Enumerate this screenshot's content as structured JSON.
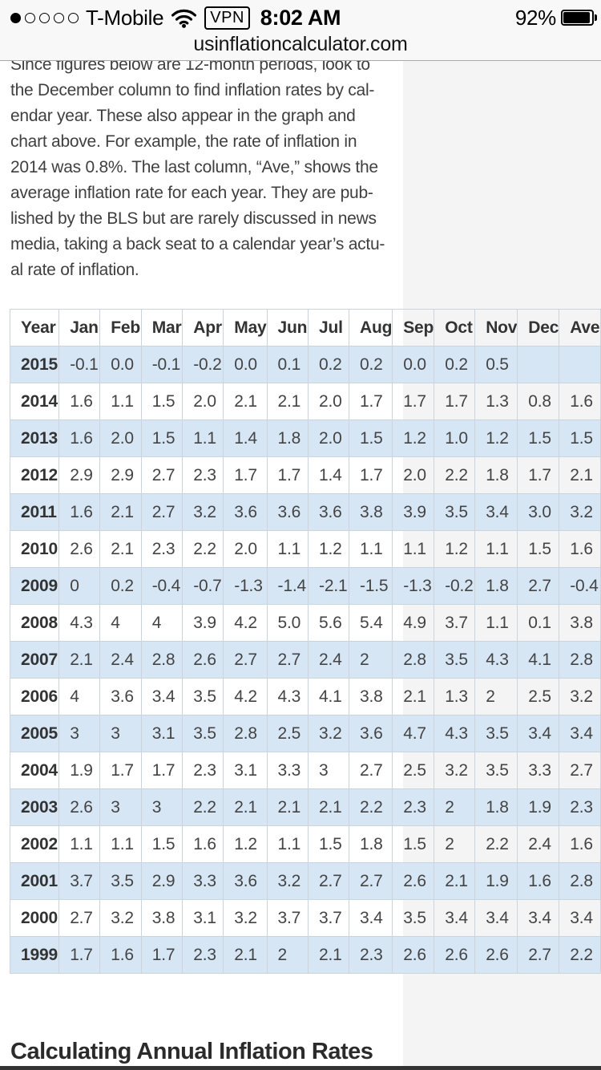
{
  "status_bar": {
    "carrier": "T-Mobile",
    "vpn_label": "VPN",
    "time": "8:02 AM",
    "battery_percent": "92%",
    "signal_dots_filled": 1,
    "signal_dots_total": 5
  },
  "url_bar": {
    "domain": "usinflationcalculator.com"
  },
  "article": {
    "lines": [
      "Since figures below are 12-month periods, look to",
      "the December column to find inflation rates by cal-",
      "endar year. These also appear in the graph and",
      "chart above. For example, the rate of inflation in",
      "2014 was 0.8%. The last column, “Ave,” shows the",
      "average inflation rate for each year. They are pub-",
      "lished by the BLS but are rarely discussed in news",
      "media, taking a back seat to a calendar year’s actu-",
      "al rate of inflation."
    ]
  },
  "table": {
    "headers": [
      "Year",
      "Jan",
      "Feb",
      "Mar",
      "Apr",
      "May",
      "Jun",
      "Jul",
      "Aug",
      "Sep",
      "Oct",
      "Nov",
      "Dec",
      "Ave"
    ],
    "rows": [
      {
        "year": "2015",
        "values": [
          "-0.1",
          "0.0",
          "-0.1",
          "-0.2",
          "0.0",
          "0.1",
          "0.2",
          "0.2",
          "0.0",
          "0.2",
          "0.5",
          "",
          ""
        ]
      },
      {
        "year": "2014",
        "values": [
          "1.6",
          "1.1",
          "1.5",
          "2.0",
          "2.1",
          "2.1",
          "2.0",
          "1.7",
          "1.7",
          "1.7",
          "1.3",
          "0.8",
          "1.6"
        ]
      },
      {
        "year": "2013",
        "values": [
          "1.6",
          "2.0",
          "1.5",
          "1.1",
          "1.4",
          "1.8",
          "2.0",
          "1.5",
          "1.2",
          "1.0",
          "1.2",
          "1.5",
          "1.5"
        ]
      },
      {
        "year": "2012",
        "values": [
          "2.9",
          "2.9",
          "2.7",
          "2.3",
          "1.7",
          "1.7",
          "1.4",
          "1.7",
          "2.0",
          "2.2",
          "1.8",
          "1.7",
          "2.1"
        ]
      },
      {
        "year": "2011",
        "values": [
          "1.6",
          "2.1",
          "2.7",
          "3.2",
          "3.6",
          "3.6",
          "3.6",
          "3.8",
          "3.9",
          "3.5",
          "3.4",
          "3.0",
          "3.2"
        ]
      },
      {
        "year": "2010",
        "values": [
          "2.6",
          "2.1",
          "2.3",
          "2.2",
          "2.0",
          "1.1",
          "1.2",
          "1.1",
          "1.1",
          "1.2",
          "1.1",
          "1.5",
          "1.6"
        ]
      },
      {
        "year": "2009",
        "values": [
          "0",
          "0.2",
          "-0.4",
          "-0.7",
          "-1.3",
          "-1.4",
          "-2.1",
          "-1.5",
          "-1.3",
          "-0.2",
          "1.8",
          "2.7",
          "-0.4"
        ]
      },
      {
        "year": "2008",
        "values": [
          "4.3",
          "4",
          "4",
          "3.9",
          "4.2",
          "5.0",
          "5.6",
          "5.4",
          "4.9",
          "3.7",
          "1.1",
          "0.1",
          "3.8"
        ]
      },
      {
        "year": "2007",
        "values": [
          "2.1",
          "2.4",
          "2.8",
          "2.6",
          "2.7",
          "2.7",
          "2.4",
          "2",
          "2.8",
          "3.5",
          "4.3",
          "4.1",
          "2.8"
        ]
      },
      {
        "year": "2006",
        "values": [
          "4",
          "3.6",
          "3.4",
          "3.5",
          "4.2",
          "4.3",
          "4.1",
          "3.8",
          "2.1",
          "1.3",
          "2",
          "2.5",
          "3.2"
        ]
      },
      {
        "year": "2005",
        "values": [
          "3",
          "3",
          "3.1",
          "3.5",
          "2.8",
          "2.5",
          "3.2",
          "3.6",
          "4.7",
          "4.3",
          "3.5",
          "3.4",
          "3.4"
        ]
      },
      {
        "year": "2004",
        "values": [
          "1.9",
          "1.7",
          "1.7",
          "2.3",
          "3.1",
          "3.3",
          "3",
          "2.7",
          "2.5",
          "3.2",
          "3.5",
          "3.3",
          "2.7"
        ]
      },
      {
        "year": "2003",
        "values": [
          "2.6",
          "3",
          "3",
          "2.2",
          "2.1",
          "2.1",
          "2.1",
          "2.2",
          "2.3",
          "2",
          "1.8",
          "1.9",
          "2.3"
        ]
      },
      {
        "year": "2002",
        "values": [
          "1.1",
          "1.1",
          "1.5",
          "1.6",
          "1.2",
          "1.1",
          "1.5",
          "1.8",
          "1.5",
          "2",
          "2.2",
          "2.4",
          "1.6"
        ]
      },
      {
        "year": "2001",
        "values": [
          "3.7",
          "3.5",
          "2.9",
          "3.3",
          "3.6",
          "3.2",
          "2.7",
          "2.7",
          "2.6",
          "2.1",
          "1.9",
          "1.6",
          "2.8"
        ]
      },
      {
        "year": "2000",
        "values": [
          "2.7",
          "3.2",
          "3.8",
          "3.1",
          "3.2",
          "3.7",
          "3.7",
          "3.4",
          "3.5",
          "3.4",
          "3.4",
          "3.4",
          "3.4"
        ]
      },
      {
        "year": "1999",
        "values": [
          "1.7",
          "1.6",
          "1.7",
          "2.3",
          "2.1",
          "2",
          "2.1",
          "2.3",
          "2.6",
          "2.6",
          "2.6",
          "2.7",
          "2.2"
        ]
      }
    ]
  },
  "page": {
    "section_heading": "Calculating Annual Inflation Rates"
  },
  "colors": {
    "stripe_blue": "#d7e6f5",
    "page_bg": "#f4f4f5",
    "chrome_bg": "#f8f8f8",
    "dark_bar": "#333333"
  }
}
